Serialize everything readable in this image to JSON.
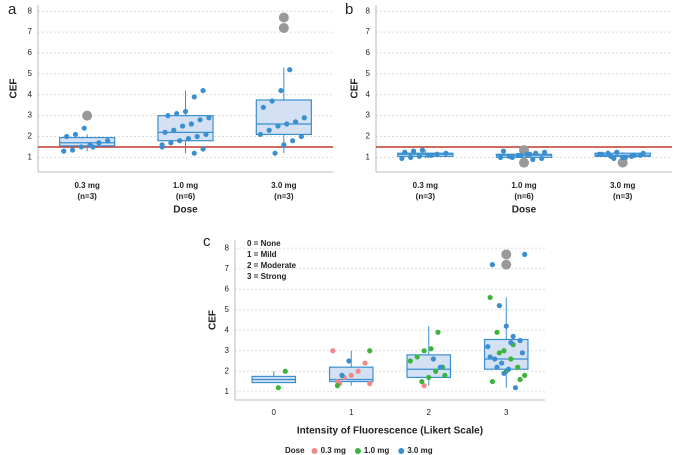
{
  "chart_data": [
    {
      "type": "box",
      "panel_label": "a",
      "y_label": "CEF",
      "x_label": "Dose",
      "categories": [
        "0.3 mg",
        "1.0 mg",
        "3.0 mg"
      ],
      "category_counts": [
        "(n=3)",
        "(n=6)",
        "(n=3)"
      ],
      "ylim": [
        0.3,
        8.3
      ],
      "yticks": [
        1,
        2,
        3,
        4,
        5,
        6,
        7,
        8
      ],
      "grid": true,
      "reference_line": {
        "value": 1.5,
        "color": "#c0392b"
      },
      "color": "#3a8fd0",
      "box_fill": "#d4e1f5",
      "outlier_color": "#999999",
      "boxes": [
        {
          "low": 1.3,
          "q1": 1.55,
          "median": 1.7,
          "q3": 1.95,
          "high": 2.1
        },
        {
          "low": 1.2,
          "q1": 1.8,
          "median": 2.2,
          "q3": 3.0,
          "high": 4.2
        },
        {
          "low": 1.2,
          "q1": 2.1,
          "median": 2.6,
          "q3": 3.75,
          "high": 5.3
        }
      ],
      "points": [
        [
          1.3,
          1.35,
          1.5,
          1.6,
          1.7,
          1.8,
          2.0,
          2.1,
          2.4,
          1.5
        ],
        [
          1.2,
          1.4,
          1.6,
          1.7,
          1.8,
          1.9,
          2.0,
          2.1,
          2.2,
          2.3,
          2.5,
          2.6,
          2.8,
          2.9,
          3.0,
          3.1,
          3.2,
          3.9,
          4.2,
          1.5
        ],
        [
          1.2,
          1.6,
          1.8,
          2.0,
          2.1,
          2.3,
          2.5,
          2.6,
          2.7,
          2.9,
          3.4,
          3.7,
          4.2,
          5.2
        ]
      ],
      "outliers": [
        [
          3.0
        ],
        [],
        [
          7.7,
          7.2
        ]
      ]
    },
    {
      "type": "box",
      "panel_label": "b",
      "y_label": "CEF",
      "x_label": "Dose",
      "categories": [
        "0.3 mg",
        "1.0 mg",
        "3.0 mg"
      ],
      "category_counts": [
        "(n=3)",
        "(n=6)",
        "(n=3)"
      ],
      "ylim": [
        0.3,
        8.3
      ],
      "yticks": [
        1,
        2,
        3,
        4,
        5,
        6,
        7,
        8
      ],
      "grid": true,
      "reference_line": {
        "value": 1.5,
        "color": "#c0392b"
      },
      "color": "#3a8fd0",
      "box_fill": "#d4e1f5",
      "outlier_color": "#999999",
      "boxes": [
        {
          "low": 0.95,
          "q1": 1.05,
          "median": 1.15,
          "q3": 1.2,
          "high": 1.35
        },
        {
          "low": 0.9,
          "q1": 1.0,
          "median": 1.1,
          "q3": 1.15,
          "high": 1.3
        },
        {
          "low": 0.95,
          "q1": 1.05,
          "median": 1.1,
          "q3": 1.2,
          "high": 1.25
        }
      ],
      "points": [
        [
          0.95,
          1.0,
          1.05,
          1.1,
          1.15,
          1.2,
          1.25,
          1.3,
          1.35,
          1.1
        ],
        [
          0.9,
          0.95,
          1.0,
          1.05,
          1.1,
          1.15,
          1.2,
          1.25,
          1.3,
          1.0,
          1.1,
          1.15
        ],
        [
          0.95,
          1.0,
          1.05,
          1.1,
          1.15,
          1.2,
          1.25,
          1.0,
          1.1,
          1.2,
          1.15,
          1.05
        ]
      ],
      "outliers": [
        [],
        [
          1.35,
          0.75
        ],
        [
          0.75
        ]
      ]
    },
    {
      "type": "box",
      "panel_label": "c",
      "y_label": "CEF",
      "x_label": "Intensity of Fluorescence (Likert Scale)",
      "annotations": [
        "0 = None",
        "1 = Mild",
        "2 = Moderate",
        "3 = Strong"
      ],
      "xlim": [
        -0.5,
        3.5
      ],
      "xticks": [
        0,
        1,
        2,
        3
      ],
      "ylim": [
        0.6,
        8.4
      ],
      "yticks": [
        1,
        2,
        3,
        4,
        5,
        6,
        7,
        8
      ],
      "grid": true,
      "color": "#3a8fd0",
      "box_fill": "#d4e1f5",
      "outlier_color": "#999999",
      "boxes": [
        {
          "low": 1.45,
          "q1": 1.45,
          "median": 1.6,
          "q3": 1.75,
          "high": 2.0
        },
        {
          "low": 1.3,
          "q1": 1.5,
          "median": 1.6,
          "q3": 2.2,
          "high": 3.0
        },
        {
          "low": 1.3,
          "q1": 1.7,
          "median": 2.1,
          "q3": 2.8,
          "high": 4.2
        },
        {
          "low": 1.2,
          "q1": 2.1,
          "median": 2.6,
          "q3": 3.55,
          "high": 5.6
        }
      ],
      "outliers": [
        [],
        [],
        [],
        [
          7.7,
          7.2
        ]
      ],
      "legend_title": "Dose",
      "series": [
        {
          "name": "0.3 mg",
          "color": "#f08a8a",
          "x": [
            1,
            1,
            1,
            1,
            1,
            1,
            1,
            1,
            2
          ],
          "values": [
            1.4,
            1.5,
            1.7,
            1.8,
            2.0,
            2.4,
            3.0,
            1.4,
            1.3
          ]
        },
        {
          "name": "1.0 mg",
          "color": "#3cb43c",
          "x": [
            0,
            0,
            1,
            1,
            2,
            2,
            2,
            2,
            2,
            2,
            2,
            2,
            2,
            2,
            3,
            3,
            3,
            3,
            3,
            3,
            3,
            3,
            3,
            3,
            3
          ],
          "values": [
            1.2,
            2.0,
            3.0,
            1.3,
            1.5,
            1.7,
            2.0,
            2.2,
            2.5,
            2.7,
            3.0,
            3.1,
            3.9,
            1.8,
            5.6,
            3.9,
            3.0,
            2.6,
            2.2,
            1.8,
            1.5,
            2.9,
            2.0,
            3.3,
            1.6
          ]
        },
        {
          "name": "3.0 mg",
          "color": "#3a8fd0",
          "x": [
            1,
            1,
            2,
            2,
            3,
            3,
            3,
            3,
            3,
            3,
            3,
            3,
            3,
            3,
            3,
            3,
            3,
            3,
            3,
            3
          ],
          "values": [
            1.8,
            2.5,
            2.6,
            2.2,
            7.7,
            7.2,
            5.2,
            4.2,
            3.7,
            3.5,
            3.2,
            2.6,
            2.4,
            2.1,
            1.2,
            2.9,
            2.7,
            2.2,
            1.9,
            3.4
          ]
        }
      ]
    }
  ]
}
